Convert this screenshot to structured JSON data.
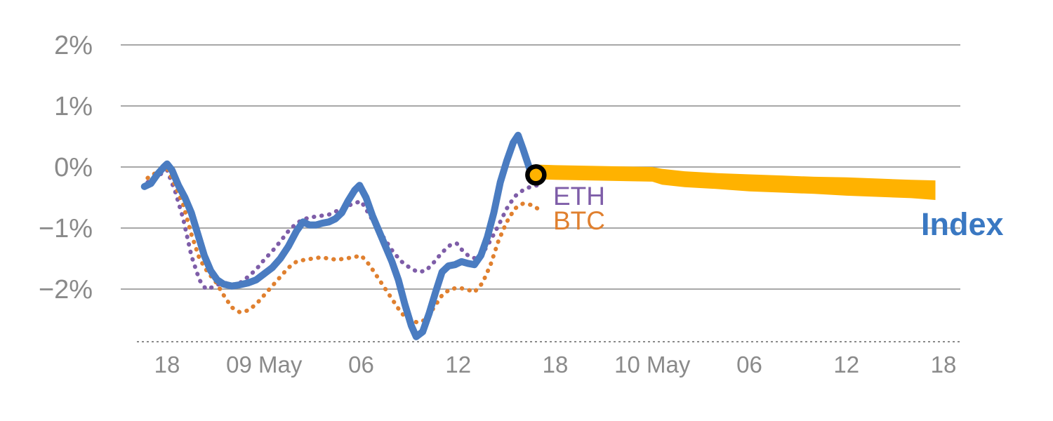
{
  "chart_data": {
    "type": "line",
    "y_axis": {
      "tick_labels": [
        "2%",
        "1%",
        "0%",
        "−1%",
        "−2%"
      ],
      "tick_values": [
        2,
        1,
        0,
        -1,
        -2
      ],
      "ylim": [
        -2.9,
        2.3
      ]
    },
    "x_axis": {
      "tick_labels": [
        "18",
        "09 May",
        "06",
        "12",
        "18",
        "10 May",
        "06",
        "12",
        "18"
      ],
      "tick_values_hours": [
        0,
        6,
        12,
        18,
        24,
        30,
        36,
        42,
        48
      ],
      "xlim_hours": [
        -2.9,
        49.1
      ]
    },
    "series": [
      {
        "name": "ETH",
        "color": "#7e5da8",
        "style": "dotted",
        "width": 6,
        "x": [
          -1.2,
          -0.6,
          0,
          0.5,
          1,
          1.5,
          2,
          2.4,
          2.8,
          3.2,
          3.6,
          4,
          4.5,
          5,
          5.5,
          6,
          6.5,
          7,
          7.5,
          8,
          8.5,
          9,
          9.5,
          10,
          10.5,
          11,
          11.5,
          12,
          12.5,
          13,
          13.5,
          14,
          14.5,
          15,
          15.5,
          16,
          16.5,
          17,
          17.5,
          17.9,
          18.3,
          18.7,
          19.1,
          19.5,
          20,
          20.5,
          21,
          21.5,
          22,
          22.5,
          22.9
        ],
        "y": [
          -0.25,
          -0.15,
          -0.05,
          -0.4,
          -0.85,
          -1.45,
          -1.85,
          -2.0,
          -1.97,
          -1.92,
          -1.9,
          -1.93,
          -1.9,
          -1.8,
          -1.68,
          -1.52,
          -1.38,
          -1.22,
          -1.05,
          -0.92,
          -0.85,
          -0.82,
          -0.8,
          -0.78,
          -0.72,
          -0.66,
          -0.6,
          -0.56,
          -0.78,
          -1.0,
          -1.2,
          -1.4,
          -1.55,
          -1.65,
          -1.72,
          -1.7,
          -1.56,
          -1.4,
          -1.28,
          -1.25,
          -1.38,
          -1.47,
          -1.5,
          -1.42,
          -1.2,
          -0.95,
          -0.68,
          -0.48,
          -0.38,
          -0.32,
          -0.3
        ]
      },
      {
        "name": "BTC",
        "color": "#e0802f",
        "style": "dotted",
        "width": 6,
        "x": [
          -1.2,
          -0.6,
          0,
          0.5,
          1,
          1.5,
          2,
          2.5,
          3,
          3.5,
          4,
          4.5,
          5,
          5.5,
          6,
          6.5,
          7,
          7.5,
          8,
          8.5,
          9,
          9.5,
          10,
          10.5,
          11,
          11.5,
          12,
          12.5,
          13,
          13.5,
          14,
          14.5,
          15,
          15.5,
          16,
          16.5,
          17,
          17.5,
          18,
          18.5,
          19,
          19.5,
          20,
          20.5,
          21,
          21.5,
          22,
          22.5,
          22.9
        ],
        "y": [
          -0.18,
          -0.08,
          -0.02,
          -0.3,
          -0.62,
          -1.1,
          -1.5,
          -1.72,
          -1.88,
          -2.1,
          -2.3,
          -2.38,
          -2.35,
          -2.25,
          -2.1,
          -1.95,
          -1.8,
          -1.65,
          -1.55,
          -1.52,
          -1.5,
          -1.48,
          -1.5,
          -1.52,
          -1.5,
          -1.48,
          -1.45,
          -1.6,
          -1.8,
          -2.0,
          -2.2,
          -2.4,
          -2.5,
          -2.55,
          -2.5,
          -2.3,
          -2.1,
          -2.0,
          -1.98,
          -2.0,
          -2.05,
          -1.9,
          -1.6,
          -1.2,
          -0.9,
          -0.68,
          -0.6,
          -0.62,
          -0.68
        ]
      },
      {
        "name": "Index",
        "color": "#4a7cc1",
        "label_color": "#3a78c2",
        "style": "solid",
        "width": 10,
        "x": [
          -1.4,
          -1.0,
          -0.6,
          -0.2,
          0,
          0.3,
          0.7,
          1.1,
          1.5,
          1.9,
          2.3,
          2.7,
          3.1,
          3.5,
          4,
          4.5,
          5,
          5.5,
          6,
          6.5,
          7,
          7.5,
          8,
          8.4,
          8.8,
          9.2,
          9.6,
          10,
          10.4,
          10.8,
          11.2,
          11.6,
          11.9,
          12.3,
          12.7,
          13.1,
          13.5,
          13.9,
          14.3,
          14.7,
          15.1,
          15.4,
          15.8,
          16.2,
          16.6,
          17,
          17.4,
          17.8,
          18.2,
          18.6,
          19,
          19.4,
          19.8,
          20.2,
          20.6,
          21,
          21.4,
          21.7,
          22,
          22.4,
          22.8
        ],
        "y": [
          -0.32,
          -0.27,
          -0.12,
          0.0,
          0.05,
          -0.05,
          -0.3,
          -0.5,
          -0.75,
          -1.1,
          -1.45,
          -1.7,
          -1.85,
          -1.92,
          -1.95,
          -1.93,
          -1.9,
          -1.85,
          -1.75,
          -1.65,
          -1.5,
          -1.3,
          -1.05,
          -0.9,
          -0.95,
          -0.95,
          -0.92,
          -0.9,
          -0.85,
          -0.75,
          -0.55,
          -0.38,
          -0.3,
          -0.5,
          -0.8,
          -1.05,
          -1.3,
          -1.55,
          -1.85,
          -2.25,
          -2.6,
          -2.78,
          -2.7,
          -2.4,
          -2.05,
          -1.72,
          -1.62,
          -1.6,
          -1.55,
          -1.58,
          -1.6,
          -1.45,
          -1.15,
          -0.75,
          -0.25,
          0.1,
          0.4,
          0.52,
          0.3,
          -0.02,
          -0.15
        ]
      }
    ],
    "forecast_band": {
      "name": "Index forecast",
      "color": "#ffb200",
      "x": [
        22.8,
        24,
        26,
        28,
        30,
        30.6,
        32,
        34,
        36,
        38,
        40,
        42,
        44,
        46,
        47.5
      ],
      "center": [
        -0.08,
        -0.09,
        -0.1,
        -0.11,
        -0.12,
        -0.16,
        -0.2,
        -0.23,
        -0.26,
        -0.28,
        -0.3,
        -0.32,
        -0.34,
        -0.36,
        -0.38
      ],
      "halfwidth": [
        0.12,
        0.12,
        0.12,
        0.12,
        0.12,
        0.13,
        0.13,
        0.13,
        0.14,
        0.14,
        0.14,
        0.15,
        0.15,
        0.15,
        0.16
      ]
    },
    "marker": {
      "type": "open-circle",
      "x": 22.8,
      "y": -0.13,
      "ring_color": "#000000"
    },
    "style": {
      "grid_color": "#8c8c8c",
      "tick_color": "#8a8a8a",
      "background": "#ffffff"
    }
  }
}
